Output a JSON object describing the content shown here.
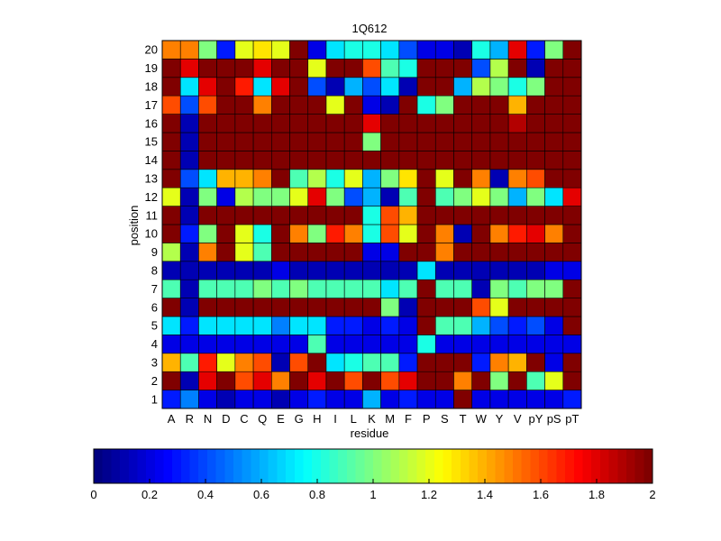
{
  "chart_data": {
    "type": "heatmap",
    "title": "1Q612",
    "xlabel": "residue",
    "ylabel": "position",
    "x_categories": [
      "A",
      "R",
      "N",
      "D",
      "C",
      "Q",
      "E",
      "G",
      "H",
      "I",
      "L",
      "K",
      "M",
      "F",
      "P",
      "S",
      "T",
      "W",
      "Y",
      "V",
      "pY",
      "pS",
      "pT"
    ],
    "y_categories": [
      "1",
      "2",
      "3",
      "4",
      "5",
      "6",
      "7",
      "8",
      "9",
      "10",
      "11",
      "12",
      "13",
      "14",
      "15",
      "16",
      "17",
      "18",
      "19",
      "20"
    ],
    "value_range": [
      0,
      2
    ],
    "colormap": "jet",
    "colorbar_ticks": [
      "0",
      "0.2",
      "0.4",
      "0.6",
      "0.8",
      "1",
      "1.2",
      "1.4",
      "1.6",
      "1.8",
      "2"
    ],
    "values": [
      [
        0.3,
        0.5,
        0.2,
        0.1,
        0.2,
        0.2,
        0.1,
        0.2,
        0.3,
        0.2,
        0.2,
        0.6,
        0.2,
        0.3,
        0.2,
        0.2,
        2.0,
        0.2,
        0.2,
        0.2,
        0.2,
        0.2,
        0.3
      ],
      [
        2.0,
        0.1,
        1.8,
        2.0,
        1.6,
        1.8,
        1.5,
        2.0,
        1.8,
        2.0,
        1.6,
        2.0,
        1.6,
        1.8,
        2.0,
        2.0,
        1.5,
        2.0,
        1.0,
        2.0,
        0.9,
        1.2,
        2.0
      ],
      [
        1.4,
        0.9,
        1.7,
        1.2,
        1.5,
        1.6,
        0.1,
        1.6,
        2.0,
        0.7,
        0.8,
        0.9,
        0.9,
        0.3,
        2.0,
        2.0,
        2.0,
        0.3,
        1.5,
        1.4,
        2.0,
        0.2,
        2.0
      ],
      [
        0.2,
        0.2,
        0.2,
        0.2,
        0.2,
        0.2,
        0.2,
        0.2,
        0.9,
        0.2,
        0.2,
        0.2,
        0.2,
        0.2,
        0.8,
        0.2,
        0.2,
        0.2,
        0.2,
        0.2,
        0.2,
        0.2,
        0.2
      ],
      [
        0.7,
        0.3,
        0.7,
        0.7,
        0.7,
        0.7,
        0.5,
        0.7,
        0.7,
        0.3,
        0.3,
        0.2,
        0.3,
        0.2,
        2.0,
        0.9,
        0.9,
        0.6,
        0.4,
        0.3,
        0.4,
        0.2,
        2.0
      ],
      [
        2.0,
        0.1,
        2.0,
        2.0,
        2.0,
        2.0,
        2.0,
        2.0,
        2.0,
        2.0,
        2.0,
        2.0,
        1.0,
        0.1,
        2.0,
        2.0,
        2.0,
        1.6,
        1.2,
        2.0,
        2.0,
        2.0,
        2.0
      ],
      [
        0.9,
        0.1,
        0.9,
        0.9,
        0.9,
        1.0,
        0.9,
        1.0,
        0.9,
        0.9,
        0.9,
        0.9,
        0.7,
        0.9,
        2.0,
        0.9,
        0.9,
        0.1,
        1.0,
        0.9,
        1.0,
        1.0,
        2.0
      ],
      [
        0.1,
        0.1,
        0.1,
        0.1,
        0.1,
        0.1,
        0.2,
        0.1,
        0.1,
        0.1,
        0.1,
        0.1,
        0.1,
        0.1,
        0.7,
        0.1,
        0.1,
        0.1,
        0.1,
        0.1,
        0.1,
        0.2,
        0.2
      ],
      [
        1.1,
        0.1,
        1.5,
        2.0,
        1.2,
        0.9,
        2.0,
        2.0,
        2.0,
        2.0,
        2.0,
        0.2,
        0.2,
        2.0,
        2.0,
        1.5,
        2.0,
        2.0,
        2.0,
        2.0,
        2.0,
        2.0,
        2.0
      ],
      [
        2.0,
        0.3,
        1.0,
        2.0,
        1.2,
        0.8,
        2.0,
        1.5,
        1.0,
        1.7,
        1.5,
        0.8,
        1.6,
        1.2,
        2.0,
        1.5,
        0.1,
        2.0,
        1.5,
        1.7,
        1.8,
        1.5,
        2.0
      ],
      [
        2.0,
        0.1,
        2.0,
        2.0,
        2.0,
        2.0,
        2.0,
        2.0,
        2.0,
        2.0,
        2.0,
        0.8,
        1.6,
        1.4,
        2.0,
        2.0,
        2.0,
        2.0,
        2.0,
        2.0,
        2.0,
        2.0,
        2.0
      ],
      [
        1.2,
        0.1,
        1.0,
        0.2,
        1.1,
        1.0,
        1.0,
        1.2,
        1.8,
        1.0,
        0.4,
        0.6,
        0.1,
        0.9,
        2.0,
        0.9,
        1.0,
        1.2,
        1.0,
        0.6,
        1.0,
        0.7,
        1.8
      ],
      [
        2.0,
        0.4,
        0.7,
        1.4,
        1.4,
        1.5,
        2.0,
        0.9,
        1.1,
        0.8,
        1.2,
        0.6,
        1.0,
        1.3,
        2.0,
        1.2,
        2.0,
        1.5,
        0.1,
        1.5,
        1.6,
        2.0,
        2.0
      ],
      [
        2.0,
        0.1,
        2.0,
        2.0,
        2.0,
        2.0,
        2.0,
        2.0,
        2.0,
        2.0,
        2.0,
        2.0,
        2.0,
        2.0,
        2.0,
        2.0,
        2.0,
        2.0,
        2.0,
        2.0,
        2.0,
        2.0,
        2.0
      ],
      [
        2.0,
        0.1,
        2.0,
        2.0,
        2.0,
        2.0,
        2.0,
        2.0,
        2.0,
        2.0,
        2.0,
        1.0,
        2.0,
        2.0,
        2.0,
        2.0,
        2.0,
        2.0,
        2.0,
        2.0,
        2.0,
        2.0,
        2.0
      ],
      [
        2.0,
        0.1,
        2.0,
        2.0,
        2.0,
        2.0,
        2.0,
        2.0,
        2.0,
        2.0,
        2.0,
        1.8,
        2.0,
        2.0,
        2.0,
        2.0,
        2.0,
        2.0,
        2.0,
        1.9,
        2.0,
        2.0,
        2.0
      ],
      [
        1.6,
        0.4,
        1.6,
        2.0,
        2.0,
        1.5,
        2.0,
        2.0,
        2.0,
        1.2,
        2.0,
        0.2,
        0.1,
        2.0,
        0.8,
        1.0,
        2.0,
        2.0,
        2.0,
        1.4,
        2.0,
        2.0,
        2.0
      ],
      [
        2.0,
        0.7,
        1.8,
        2.0,
        1.7,
        0.7,
        1.8,
        2.0,
        0.4,
        0.1,
        0.6,
        0.4,
        0.7,
        0.1,
        2.0,
        2.0,
        0.6,
        1.1,
        1.0,
        0.8,
        1.0,
        2.0,
        2.0
      ],
      [
        2.0,
        1.8,
        2.0,
        2.0,
        2.0,
        1.8,
        2.0,
        2.0,
        1.2,
        2.0,
        2.0,
        1.6,
        0.9,
        0.8,
        2.0,
        2.0,
        2.0,
        0.4,
        1.1,
        2.0,
        0.1,
        2.0,
        2.0
      ],
      [
        1.5,
        1.5,
        1.0,
        0.3,
        1.2,
        1.3,
        1.2,
        2.0,
        0.2,
        0.7,
        0.8,
        0.8,
        0.7,
        0.4,
        0.2,
        0.2,
        0.1,
        0.8,
        0.6,
        1.8,
        0.3,
        1.0,
        2.0
      ]
    ]
  }
}
